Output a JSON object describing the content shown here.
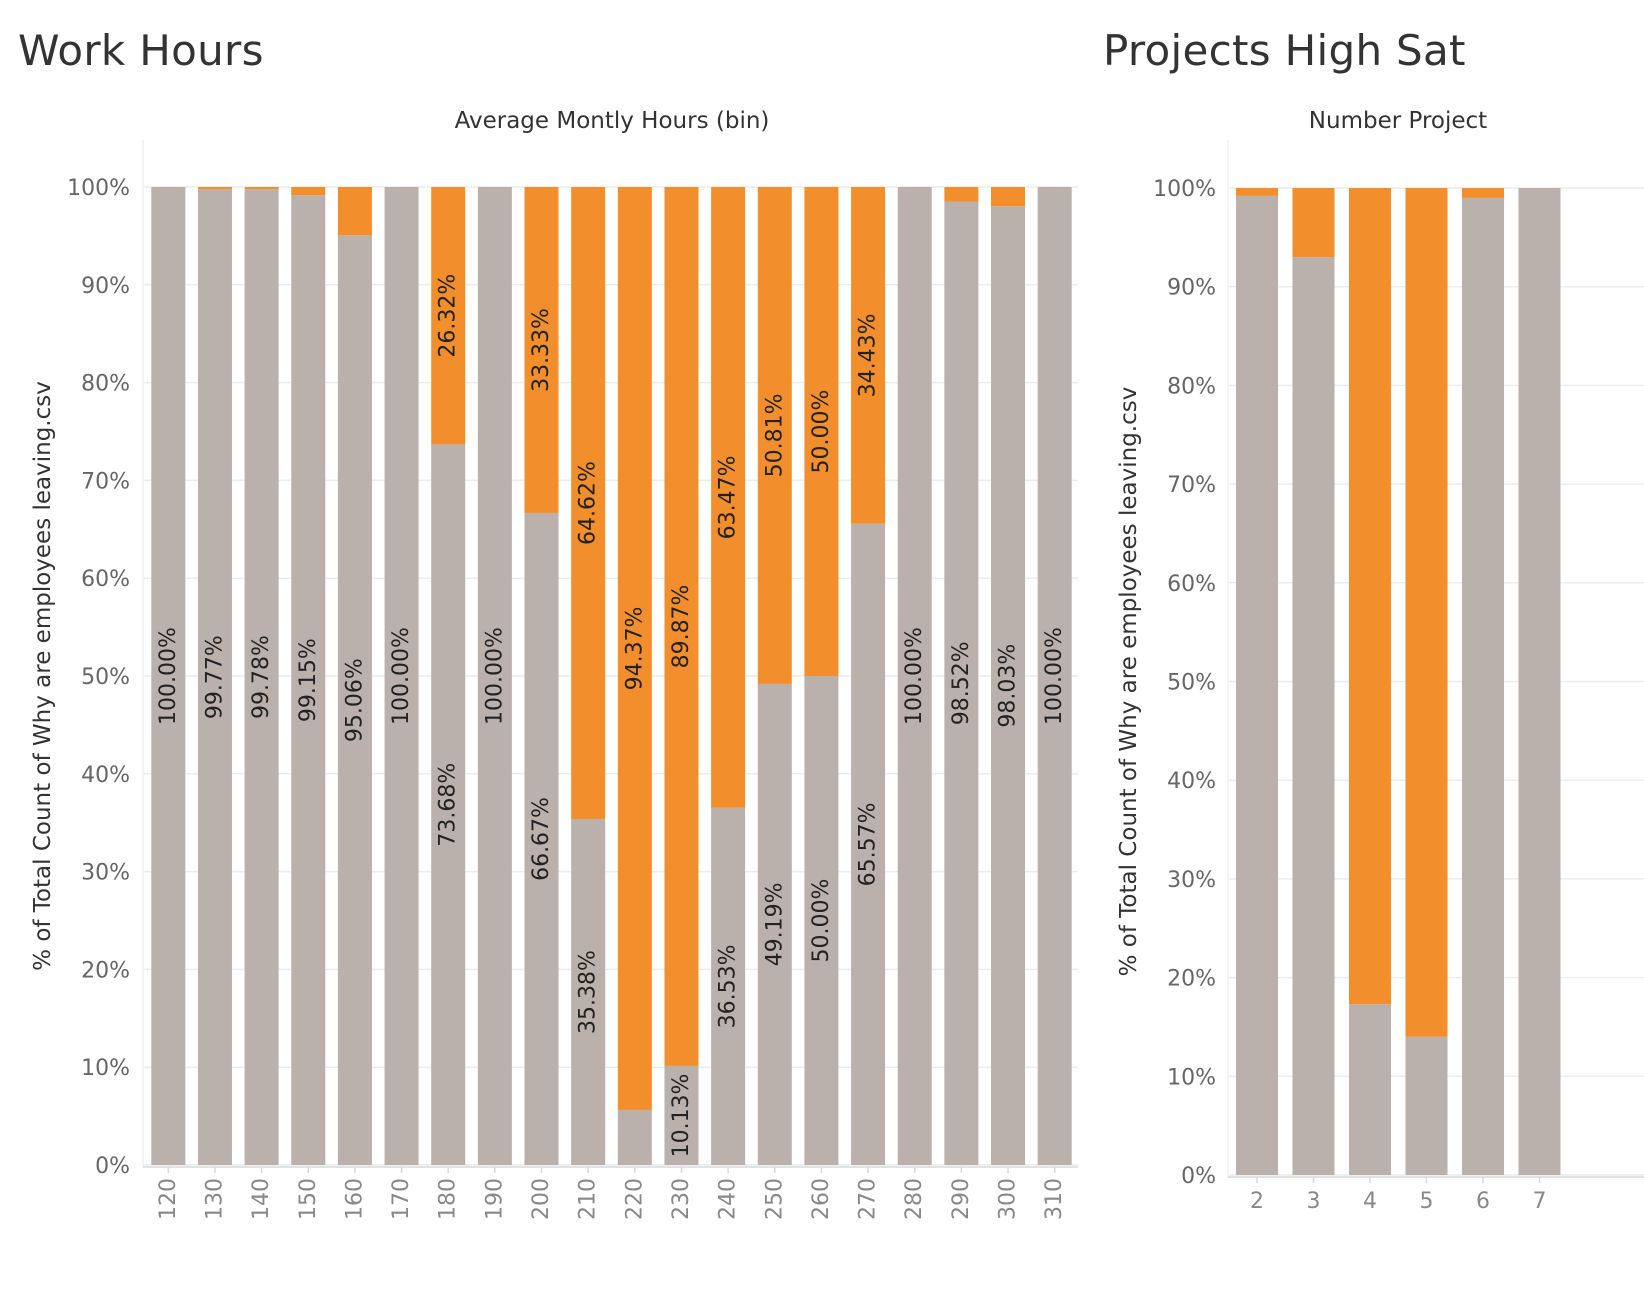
{
  "chart_data": [
    {
      "type": "bar",
      "stacked": true,
      "title": "Work Hours",
      "xlabel": "Average Montly Hours (bin)",
      "ylabel": "% of Total Count of Why are employees leaving.csv",
      "ylim": [
        0,
        100
      ],
      "yticks": [
        "0%",
        "10%",
        "20%",
        "30%",
        "40%",
        "50%",
        "60%",
        "70%",
        "80%",
        "90%",
        "100%"
      ],
      "grid": true,
      "categories": [
        "120",
        "130",
        "140",
        "150",
        "160",
        "170",
        "180",
        "190",
        "200",
        "210",
        "220",
        "230",
        "240",
        "250",
        "260",
        "270",
        "280",
        "290",
        "300",
        "310"
      ],
      "series": [
        {
          "color": "#bab0ac",
          "values": [
            100.0,
            99.77,
            99.78,
            99.15,
            95.06,
            100.0,
            73.68,
            100.0,
            66.67,
            35.38,
            5.63,
            10.13,
            36.53,
            49.19,
            50.0,
            65.57,
            100.0,
            98.52,
            98.03,
            100.0
          ],
          "labels": [
            "100.00%",
            "99.77%",
            "99.78%",
            "99.15%",
            "95.06%",
            "100.00%",
            "73.68%",
            "100.00%",
            "66.67%",
            "35.38%",
            "",
            "10.13%",
            "36.53%",
            "49.19%",
            "50.00%",
            "65.57%",
            "100.00%",
            "98.52%",
            "98.03%",
            "100.00%"
          ]
        },
        {
          "color": "#f28e2b",
          "values": [
            0,
            0.23,
            0.22,
            0.85,
            4.94,
            0,
            26.32,
            0,
            33.33,
            64.62,
            94.37,
            89.87,
            63.47,
            50.81,
            50.0,
            34.43,
            0,
            1.48,
            1.97,
            0
          ],
          "labels": [
            "",
            "",
            "",
            "",
            "",
            "",
            "26.32%",
            "",
            "33.33%",
            "64.62%",
            "94.37%",
            "89.87%",
            "63.47%",
            "50.81%",
            "50.00%",
            "34.43%",
            "",
            "",
            "",
            ""
          ]
        }
      ]
    },
    {
      "type": "bar",
      "stacked": true,
      "title": "Projects High Sat",
      "xlabel": "Number Project",
      "ylabel": "% of Total Count of Why are employees leaving.csv",
      "ylim": [
        0,
        100
      ],
      "yticks": [
        "0%",
        "10%",
        "20%",
        "30%",
        "40%",
        "50%",
        "60%",
        "70%",
        "80%",
        "90%",
        "100%"
      ],
      "grid": true,
      "categories": [
        "2",
        "3",
        "4",
        "5",
        "6",
        "7"
      ],
      "series": [
        {
          "color": "#bab0ac",
          "values": [
            99.2,
            93.0,
            17.3,
            14.0,
            99.0,
            100.0
          ]
        },
        {
          "color": "#f28e2b",
          "values": [
            0.8,
            7.0,
            82.7,
            86.0,
            1.0,
            0
          ]
        }
      ]
    }
  ]
}
